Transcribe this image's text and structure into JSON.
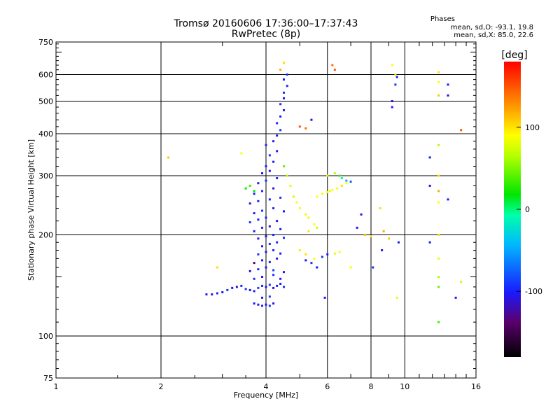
{
  "header": {
    "title": "Tromsø 20160606 17:36:00–17:37:43",
    "subtitle": "RwPretec (8p)"
  },
  "stats": {
    "heading": "Phases",
    "line_o": "mean, sd,O: -93.1, 19.8",
    "line_x": "mean, sd,X:  85.0, 22.6"
  },
  "colorbar": {
    "label": "[deg]",
    "ticks": [
      "100",
      "0",
      "-100"
    ],
    "tick_values": [
      100,
      0,
      -100
    ],
    "range": [
      -180,
      180
    ]
  },
  "chart_data": {
    "type": "scatter",
    "xlabel": "Frequency [MHz]",
    "ylabel": "Stationary phase Virtual Height [km]",
    "xscale": "log",
    "yscale": "log",
    "xlim": [
      1,
      16
    ],
    "ylim": [
      75,
      750
    ],
    "xticks": [
      1,
      2,
      4,
      6,
      8,
      10,
      16
    ],
    "xtick_labels": [
      "1",
      "2",
      "4",
      "6",
      "8",
      "10",
      "16"
    ],
    "yticks": [
      75,
      100,
      200,
      300,
      400,
      500,
      600,
      750
    ],
    "ytick_labels": [
      "75",
      "100",
      "200",
      "300",
      "400",
      "500",
      "600",
      "750"
    ],
    "grid": true,
    "series": [
      {
        "points": [
          [
            2.7,
            133,
            -110
          ],
          [
            2.8,
            133,
            -115
          ],
          [
            2.9,
            134,
            -105
          ],
          [
            3.0,
            135,
            -110
          ],
          [
            3.1,
            137,
            -100
          ],
          [
            3.2,
            139,
            -110
          ],
          [
            3.3,
            140,
            -120
          ],
          [
            3.4,
            141,
            -105
          ],
          [
            3.5,
            138,
            -100
          ],
          [
            3.6,
            137,
            -115
          ],
          [
            3.7,
            136,
            -110
          ],
          [
            3.8,
            139,
            -95
          ],
          [
            3.9,
            141,
            -105
          ],
          [
            4.0,
            140,
            -110
          ],
          [
            4.1,
            142,
            -100
          ],
          [
            4.2,
            139,
            -115
          ],
          [
            4.3,
            141,
            -105
          ],
          [
            4.4,
            143,
            -110
          ],
          [
            4.5,
            140,
            -100
          ],
          [
            3.7,
            125,
            -110
          ],
          [
            3.8,
            124,
            -115
          ],
          [
            3.9,
            123,
            -105
          ],
          [
            4.0,
            124,
            -110
          ],
          [
            4.1,
            123,
            -100
          ],
          [
            4.2,
            125,
            -115
          ],
          [
            3.9,
            130,
            -110
          ],
          [
            4.1,
            131,
            -95
          ],
          [
            3.7,
            148,
            -105
          ],
          [
            3.9,
            150,
            -110
          ],
          [
            4.2,
            152,
            -100
          ],
          [
            4.4,
            148,
            -110
          ],
          [
            3.6,
            156,
            -120
          ],
          [
            3.8,
            158,
            -105
          ],
          [
            4.0,
            160,
            -110
          ],
          [
            4.2,
            157,
            -95
          ],
          [
            4.5,
            155,
            -110
          ],
          [
            3.7,
            165,
            -140
          ],
          [
            3.9,
            168,
            -110
          ],
          [
            4.1,
            166,
            -105
          ],
          [
            4.3,
            170,
            -110
          ],
          [
            3.8,
            175,
            -100
          ],
          [
            4.0,
            178,
            -115
          ],
          [
            4.2,
            180,
            -105
          ],
          [
            4.4,
            176,
            -110
          ],
          [
            3.9,
            185,
            -110
          ],
          [
            4.1,
            188,
            -100
          ],
          [
            4.3,
            190,
            -105
          ],
          [
            3.8,
            195,
            -110
          ],
          [
            4.0,
            198,
            -115
          ],
          [
            4.2,
            200,
            -105
          ],
          [
            4.5,
            196,
            -100
          ],
          [
            3.7,
            205,
            -110
          ],
          [
            3.9,
            210,
            -105
          ],
          [
            4.1,
            212,
            -115
          ],
          [
            4.4,
            208,
            -110
          ],
          [
            3.6,
            218,
            -100
          ],
          [
            3.8,
            222,
            -110
          ],
          [
            4.0,
            225,
            -105
          ],
          [
            4.3,
            220,
            -115
          ],
          [
            3.7,
            232,
            -110
          ],
          [
            3.9,
            236,
            -100
          ],
          [
            4.2,
            240,
            -105
          ],
          [
            4.5,
            235,
            -110
          ],
          [
            3.6,
            248,
            -115
          ],
          [
            3.8,
            252,
            -105
          ],
          [
            4.1,
            255,
            -110
          ],
          [
            4.4,
            258,
            -100
          ],
          [
            3.7,
            265,
            -110
          ],
          [
            3.9,
            270,
            -105
          ],
          [
            4.2,
            275,
            -115
          ],
          [
            3.8,
            285,
            -110
          ],
          [
            4.0,
            290,
            -100
          ],
          [
            4.3,
            295,
            -105
          ],
          [
            3.9,
            305,
            -110
          ],
          [
            4.1,
            310,
            -115
          ],
          [
            4.0,
            320,
            -105
          ],
          [
            4.2,
            330,
            -110
          ],
          [
            4.1,
            345,
            -100
          ],
          [
            4.3,
            355,
            -110
          ],
          [
            4.0,
            370,
            -105
          ],
          [
            4.2,
            380,
            -115
          ],
          [
            4.3,
            395,
            -110
          ],
          [
            4.4,
            410,
            -100
          ],
          [
            4.3,
            430,
            -105
          ],
          [
            4.4,
            450,
            -110
          ],
          [
            4.5,
            470,
            -115
          ],
          [
            4.4,
            490,
            -105
          ],
          [
            4.5,
            510,
            -110
          ],
          [
            4.5,
            530,
            -100
          ],
          [
            4.6,
            555,
            -105
          ],
          [
            4.5,
            580,
            -110
          ],
          [
            4.6,
            600,
            -100
          ],
          [
            3.5,
            275,
            20
          ],
          [
            3.6,
            280,
            30
          ],
          [
            3.7,
            270,
            15
          ],
          [
            4.5,
            320,
            40
          ],
          [
            4.6,
            300,
            60
          ],
          [
            4.7,
            280,
            80
          ],
          [
            4.8,
            260,
            70
          ],
          [
            4.9,
            250,
            90
          ],
          [
            5.0,
            240,
            85
          ],
          [
            5.2,
            230,
            95
          ],
          [
            5.3,
            225,
            80
          ],
          [
            5.5,
            215,
            90
          ],
          [
            5.6,
            210,
            70
          ],
          [
            5.3,
            205,
            100
          ],
          [
            5.6,
            260,
            90
          ],
          [
            5.8,
            265,
            85
          ],
          [
            6.0,
            268,
            95
          ],
          [
            6.1,
            270,
            80
          ],
          [
            6.2,
            272,
            90
          ],
          [
            6.4,
            275,
            85
          ],
          [
            6.6,
            280,
            100
          ],
          [
            6.8,
            285,
            90
          ],
          [
            6.0,
            300,
            75
          ],
          [
            6.3,
            305,
            60
          ],
          [
            6.5,
            300,
            30
          ],
          [
            6.6,
            295,
            -10
          ],
          [
            6.8,
            290,
            -50
          ],
          [
            7.0,
            288,
            -80
          ],
          [
            5.0,
            180,
            95
          ],
          [
            5.2,
            175,
            100
          ],
          [
            5.5,
            170,
            90
          ],
          [
            5.8,
            172,
            -100
          ],
          [
            6.0,
            175,
            -110
          ],
          [
            6.3,
            176,
            80
          ],
          [
            6.5,
            178,
            90
          ],
          [
            5.0,
            420,
            150
          ],
          [
            5.2,
            415,
            140
          ],
          [
            5.4,
            440,
            -120
          ],
          [
            6.2,
            640,
            140
          ],
          [
            6.3,
            620,
            150
          ],
          [
            4.5,
            650,
            100
          ],
          [
            4.4,
            620,
            120
          ],
          [
            9.2,
            480,
            -110
          ],
          [
            9.2,
            500,
            -120
          ],
          [
            9.4,
            560,
            -100
          ],
          [
            9.5,
            590,
            -110
          ],
          [
            9.2,
            640,
            90
          ],
          [
            9.4,
            600,
            100
          ],
          [
            12.5,
            610,
            100
          ],
          [
            12.5,
            570,
            90
          ],
          [
            12.5,
            520,
            110
          ],
          [
            13.3,
            560,
            -110
          ],
          [
            13.3,
            520,
            -120
          ],
          [
            14.5,
            410,
            150
          ],
          [
            11.8,
            340,
            -110
          ],
          [
            12.5,
            370,
            60
          ],
          [
            12.5,
            300,
            100
          ],
          [
            12.5,
            270,
            120
          ],
          [
            12.5,
            250,
            90
          ],
          [
            11.8,
            280,
            -120
          ],
          [
            13.3,
            255,
            -110
          ],
          [
            12.5,
            200,
            100
          ],
          [
            11.8,
            190,
            -110
          ],
          [
            14.0,
            130,
            -110
          ],
          [
            12.5,
            170,
            80
          ],
          [
            12.5,
            150,
            60
          ],
          [
            12.5,
            140,
            40
          ],
          [
            12.5,
            110,
            30
          ],
          [
            14.5,
            145,
            70
          ],
          [
            9.5,
            130,
            80
          ],
          [
            9.0,
            195,
            110
          ],
          [
            8.5,
            240,
            100
          ],
          [
            8.7,
            205,
            120
          ],
          [
            9.6,
            190,
            -110
          ],
          [
            8.6,
            180,
            -110
          ],
          [
            8.1,
            160,
            -100
          ],
          [
            7.5,
            230,
            -110
          ],
          [
            7.3,
            210,
            -115
          ],
          [
            7.7,
            200,
            110
          ],
          [
            8.0,
            198,
            100
          ],
          [
            2.1,
            340,
            110
          ],
          [
            2.9,
            160,
            100
          ],
          [
            3.4,
            350,
            90
          ],
          [
            5.6,
            160,
            -110
          ],
          [
            5.4,
            165,
            -100
          ],
          [
            5.2,
            168,
            -115
          ],
          [
            5.9,
            130,
            -110
          ],
          [
            7.0,
            160,
            90
          ]
        ]
      }
    ]
  }
}
